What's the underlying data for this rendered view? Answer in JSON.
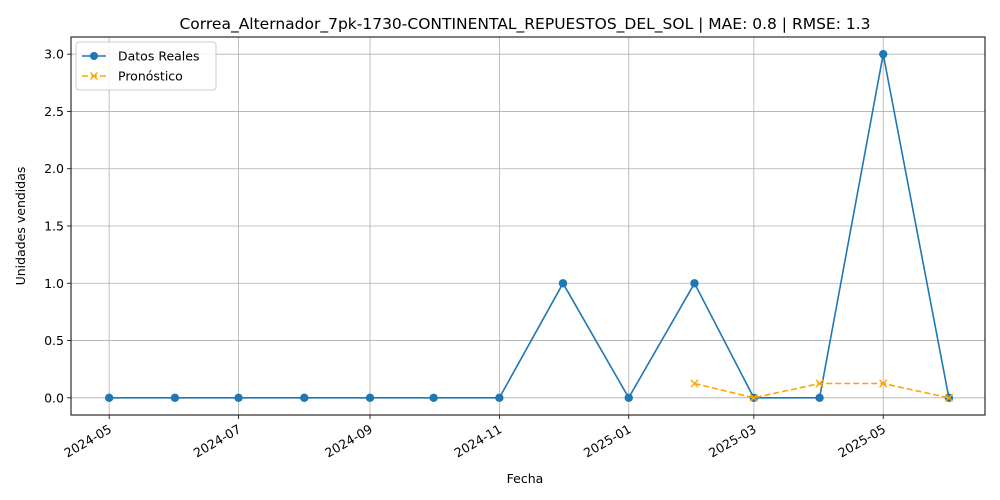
{
  "chart_data": {
    "type": "line",
    "title": "Correa_Alternador_7pk-1730-CONTINENTAL_REPUESTOS_DEL_SOL | MAE: 0.8 | RMSE: 1.3",
    "xlabel": "Fecha",
    "ylabel": "Unidades vendidas",
    "xlim": [
      "2024-04-13",
      "2025-06-18"
    ],
    "ylim": [
      -0.15,
      3.15
    ],
    "grid": true,
    "legend_position": "upper-left",
    "x_ticks": [
      "2024-05",
      "2024-07",
      "2024-09",
      "2024-11",
      "2025-01",
      "2025-03",
      "2025-05"
    ],
    "y_ticks": [
      "0.0",
      "0.5",
      "1.0",
      "1.5",
      "2.0",
      "2.5",
      "3.0"
    ],
    "series": [
      {
        "name": "Datos Reales",
        "color": "#1f77b4",
        "marker": "circle",
        "line_style": "solid",
        "x": [
          "2024-05-01",
          "2024-06-01",
          "2024-07-01",
          "2024-08-01",
          "2024-09-01",
          "2024-10-01",
          "2024-11-01",
          "2024-12-01",
          "2025-01-01",
          "2025-02-01",
          "2025-03-01",
          "2025-04-01",
          "2025-05-01",
          "2025-06-01"
        ],
        "values": [
          0,
          0,
          0,
          0,
          0,
          0,
          0,
          1,
          0,
          1,
          0,
          0,
          3,
          0
        ]
      },
      {
        "name": "Pronóstico",
        "color": "#ffa500",
        "marker": "x",
        "line_style": "dashed",
        "x": [
          "2025-02-01",
          "2025-03-01",
          "2025-04-01",
          "2025-05-01",
          "2025-06-01"
        ],
        "values": [
          0.125,
          0,
          0.125,
          0.125,
          0
        ]
      }
    ]
  }
}
